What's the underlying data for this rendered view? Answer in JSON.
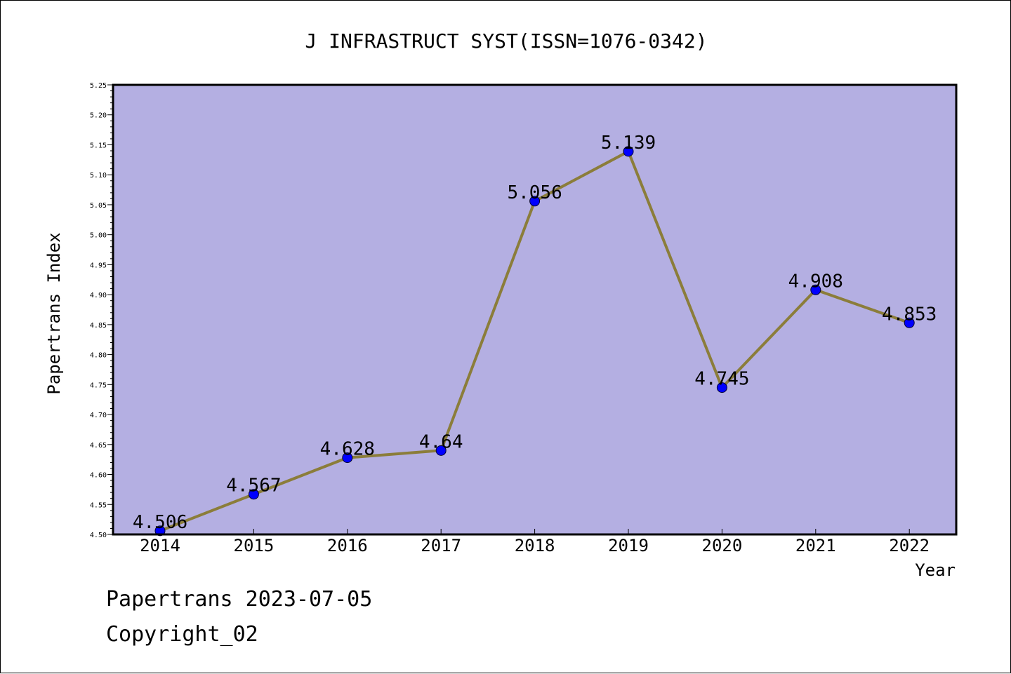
{
  "chart_data": {
    "type": "line",
    "title": "J INFRASTRUCT SYST(ISSN=1076-0342)",
    "xlabel": "Year",
    "ylabel": "Papertrans Index",
    "categories": [
      "2014",
      "2015",
      "2016",
      "2017",
      "2018",
      "2019",
      "2020",
      "2021",
      "2022"
    ],
    "series": [
      {
        "values": [
          4.506,
          4.567,
          4.628,
          4.64,
          5.056,
          5.139,
          4.745,
          4.908,
          4.853
        ],
        "labels": [
          "4.506",
          "4.567",
          "4.628",
          "4.64",
          "5.056",
          "5.139",
          "4.745",
          "4.908",
          "4.853"
        ]
      }
    ],
    "ylim": [
      4.5,
      5.25
    ],
    "yticks": [
      "4.50",
      "4.55",
      "4.60",
      "4.65",
      "4.70",
      "4.75",
      "4.80",
      "4.85",
      "4.90",
      "4.95",
      "5.00",
      "5.05",
      "5.10",
      "5.15",
      "5.20",
      "5.25"
    ],
    "grid": false,
    "legend": "none",
    "colors": {
      "plot_background": "#b4afe2",
      "line": "#8b7d3a",
      "marker": "#0000ff"
    }
  },
  "footer": {
    "line1": "Papertrans 2023-07-05",
    "line2": "Copyright_02"
  }
}
